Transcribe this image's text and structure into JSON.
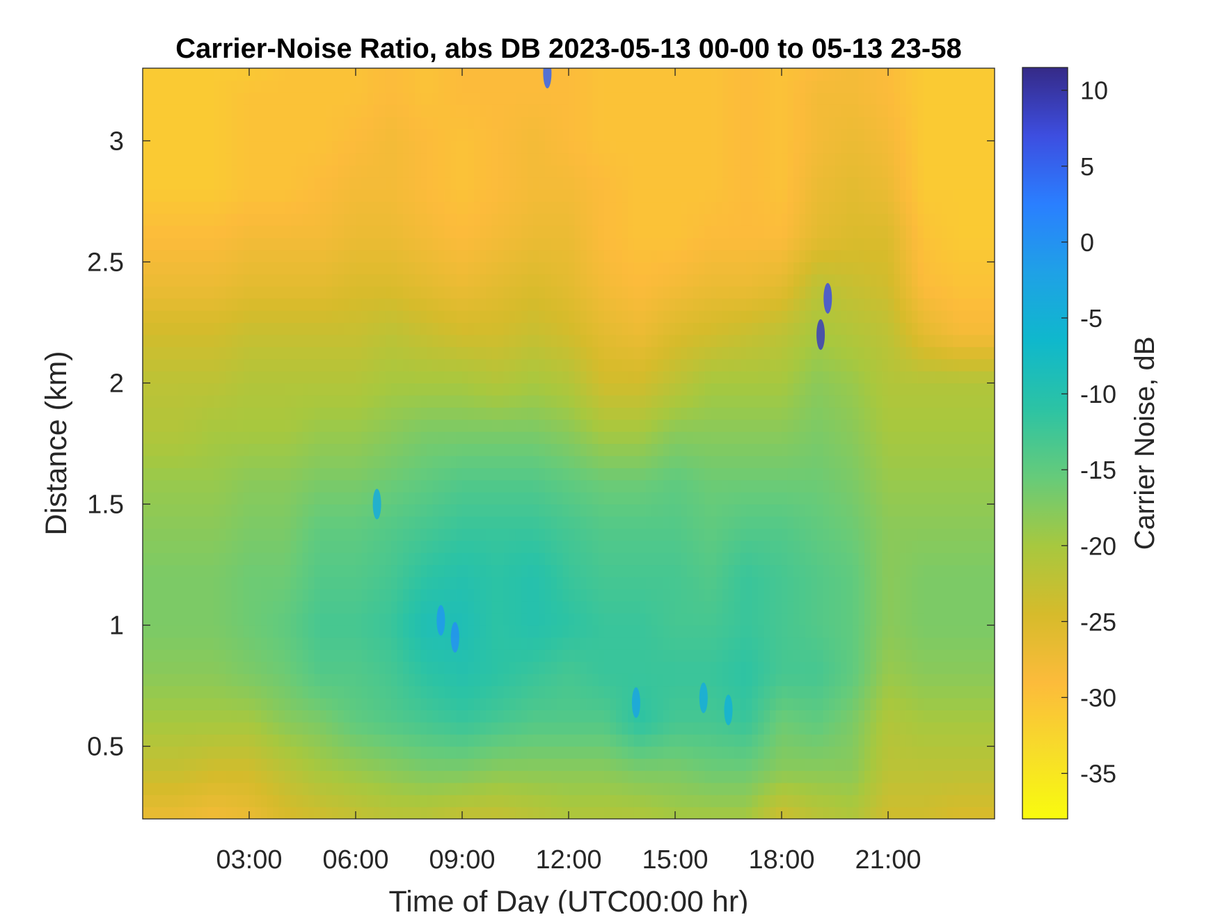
{
  "chart_data": {
    "type": "heatmap",
    "title": "Carrier-Noise Ratio, abs DB 2023-05-13 00-00 to 05-13 23-58",
    "xlabel": "Time of Day (UTC00:00 hr)",
    "ylabel": "Distance (km)",
    "colorbar_label": "Carrier Noise, dB",
    "xlim_hours": [
      0,
      24
    ],
    "ylim_km": [
      0.2,
      3.3
    ],
    "x_ticks": [
      {
        "hour": 3,
        "label": "03:00"
      },
      {
        "hour": 6,
        "label": "06:00"
      },
      {
        "hour": 9,
        "label": "09:00"
      },
      {
        "hour": 12,
        "label": "12:00"
      },
      {
        "hour": 15,
        "label": "15:00"
      },
      {
        "hour": 18,
        "label": "18:00"
      },
      {
        "hour": 21,
        "label": "21:00"
      }
    ],
    "y_ticks": [
      {
        "value": 0.5,
        "label": "0.5"
      },
      {
        "value": 1,
        "label": "1"
      },
      {
        "value": 1.5,
        "label": "1.5"
      },
      {
        "value": 2,
        "label": "2"
      },
      {
        "value": 2.5,
        "label": "2.5"
      },
      {
        "value": 3,
        "label": "3"
      }
    ],
    "colorbar": {
      "clim_db": [
        -38,
        11.5
      ],
      "ticks": [
        {
          "value": 10,
          "label": "10"
        },
        {
          "value": 5,
          "label": "5"
        },
        {
          "value": 0,
          "label": "0"
        },
        {
          "value": -5,
          "label": "-5"
        },
        {
          "value": -10,
          "label": "-10"
        },
        {
          "value": -15,
          "label": "-15"
        },
        {
          "value": -20,
          "label": "-20"
        },
        {
          "value": -25,
          "label": "-25"
        },
        {
          "value": -30,
          "label": "-30"
        },
        {
          "value": -35,
          "label": "-35"
        }
      ],
      "colormap": "parula-reversed",
      "colors_high_to_low": [
        "#352a87",
        "#3d4ee0",
        "#2a7fff",
        "#1fa1e6",
        "#0fb8cc",
        "#2cc3a4",
        "#66cb7a",
        "#a7c83f",
        "#d6bb2b",
        "#fcbb3b",
        "#f7dc2a",
        "#f9fb0e"
      ]
    },
    "distance_km": [
      0.2,
      0.4,
      0.6,
      0.8,
      1.0,
      1.2,
      1.4,
      1.6,
      1.8,
      2.0,
      2.2,
      2.4,
      2.6,
      2.8,
      3.0,
      3.2,
      3.3
    ],
    "time_hours": [
      0,
      1,
      2,
      3,
      4,
      5,
      6,
      7,
      8,
      9,
      10,
      11,
      12,
      13,
      14,
      15,
      16,
      17,
      18,
      19,
      20,
      21,
      22,
      23,
      24
    ],
    "cnr_db": [
      [
        -27,
        -27,
        -28,
        -27,
        -25,
        -24,
        -23,
        -22,
        -22,
        -23,
        -23,
        -22,
        -21,
        -21,
        -21,
        -20,
        -20,
        -20,
        -24,
        -22,
        -21,
        -24,
        -24,
        -25,
        -25
      ],
      [
        -23,
        -23,
        -24,
        -24,
        -22,
        -20,
        -19,
        -18,
        -17,
        -17,
        -18,
        -18,
        -18,
        -18,
        -17,
        -17,
        -16,
        -16,
        -18,
        -18,
        -18,
        -22,
        -22,
        -22,
        -22
      ],
      [
        -20,
        -20,
        -20,
        -20,
        -18,
        -17,
        -15,
        -14,
        -13,
        -12,
        -13,
        -14,
        -14,
        -14,
        -11,
        -13,
        -13,
        -12,
        -16,
        -15,
        -17,
        -21,
        -20,
        -20,
        -20
      ],
      [
        -18,
        -18,
        -18,
        -17,
        -16,
        -14,
        -14,
        -13,
        -11,
        -10,
        -11,
        -12,
        -13,
        -12,
        -12,
        -12,
        -12,
        -11,
        -13,
        -13,
        -15,
        -19,
        -18,
        -18,
        -18
      ],
      [
        -17,
        -17,
        -17,
        -16,
        -15,
        -13,
        -13,
        -12,
        -9,
        -9,
        -11,
        -10,
        -11,
        -12,
        -12,
        -13,
        -13,
        -12,
        -13,
        -14,
        -15,
        -18,
        -17,
        -17,
        -17
      ],
      [
        -17,
        -17,
        -17,
        -16,
        -16,
        -14,
        -14,
        -13,
        -11,
        -10,
        -11,
        -10,
        -12,
        -13,
        -13,
        -13,
        -14,
        -12,
        -13,
        -14,
        -15,
        -18,
        -17,
        -17,
        -17
      ],
      [
        -18,
        -18,
        -18,
        -17,
        -17,
        -15,
        -15,
        -14,
        -13,
        -12,
        -12,
        -12,
        -13,
        -14,
        -14,
        -14,
        -15,
        -14,
        -14,
        -15,
        -16,
        -18,
        -18,
        -18,
        -18
      ],
      [
        -19,
        -19,
        -19,
        -18,
        -18,
        -17,
        -17,
        -16,
        -15,
        -14,
        -14,
        -14,
        -15,
        -16,
        -16,
        -15,
        -16,
        -16,
        -16,
        -16,
        -17,
        -19,
        -19,
        -19,
        -19
      ],
      [
        -21,
        -21,
        -20,
        -20,
        -20,
        -19,
        -19,
        -18,
        -17,
        -17,
        -17,
        -17,
        -18,
        -20,
        -20,
        -18,
        -18,
        -18,
        -18,
        -17,
        -18,
        -20,
        -20,
        -20,
        -20
      ],
      [
        -22,
        -22,
        -22,
        -21,
        -21,
        -21,
        -21,
        -20,
        -20,
        -20,
        -21,
        -20,
        -21,
        -24,
        -24,
        -22,
        -20,
        -20,
        -20,
        -18,
        -19,
        -21,
        -21,
        -21,
        -21
      ],
      [
        -24,
        -24,
        -24,
        -23,
        -23,
        -23,
        -23,
        -22,
        -23,
        -24,
        -24,
        -23,
        -24,
        -26,
        -27,
        -25,
        -24,
        -23,
        -22,
        -20,
        -21,
        -22,
        -26,
        -28,
        -28
      ],
      [
        -27,
        -27,
        -27,
        -26,
        -26,
        -26,
        -25,
        -25,
        -26,
        -27,
        -26,
        -25,
        -26,
        -28,
        -29,
        -28,
        -27,
        -27,
        -26,
        -22,
        -23,
        -24,
        -29,
        -30,
        -30
      ],
      [
        -29,
        -29,
        -29,
        -28,
        -28,
        -28,
        -27,
        -27,
        -28,
        -29,
        -28,
        -27,
        -27,
        -29,
        -30,
        -30,
        -29,
        -29,
        -29,
        -26,
        -25,
        -25,
        -30,
        -31,
        -31
      ],
      [
        -31,
        -31,
        -31,
        -30,
        -30,
        -29,
        -28,
        -28,
        -29,
        -30,
        -29,
        -28,
        -28,
        -29,
        -30,
        -30,
        -30,
        -29,
        -30,
        -27,
        -26,
        -27,
        -31,
        -31,
        -31
      ],
      [
        -31,
        -31,
        -31,
        -30,
        -30,
        -30,
        -29,
        -28,
        -29,
        -30,
        -29,
        -28,
        -29,
        -30,
        -30,
        -30,
        -30,
        -29,
        -30,
        -28,
        -27,
        -28,
        -31,
        -31,
        -31
      ],
      [
        -31,
        -31,
        -31,
        -30,
        -30,
        -30,
        -30,
        -29,
        -30,
        -29,
        -29,
        -29,
        -29,
        -30,
        -30,
        -30,
        -30,
        -29,
        -30,
        -28,
        -28,
        -29,
        -31,
        -31,
        -31
      ],
      [
        -31,
        -31,
        -31,
        -31,
        -30,
        -30,
        -30,
        -29,
        -30,
        -29,
        -29,
        -29,
        -29,
        -30,
        -30,
        -30,
        -30,
        -29,
        -30,
        -29,
        -28,
        -29,
        -31,
        -31,
        -31
      ]
    ],
    "anomalies": [
      {
        "t": 8.8,
        "d": 0.95,
        "db": 0
      },
      {
        "t": 8.4,
        "d": 1.02,
        "db": -1
      },
      {
        "t": 19.1,
        "d": 2.2,
        "db": 9
      },
      {
        "t": 19.3,
        "d": 2.35,
        "db": 7
      },
      {
        "t": 13.9,
        "d": 0.68,
        "db": -3
      },
      {
        "t": 6.6,
        "d": 1.5,
        "db": -4
      },
      {
        "t": 11.4,
        "d": 3.28,
        "db": 5
      },
      {
        "t": 16.5,
        "d": 0.65,
        "db": -5
      },
      {
        "t": 15.8,
        "d": 0.7,
        "db": -4
      }
    ]
  }
}
